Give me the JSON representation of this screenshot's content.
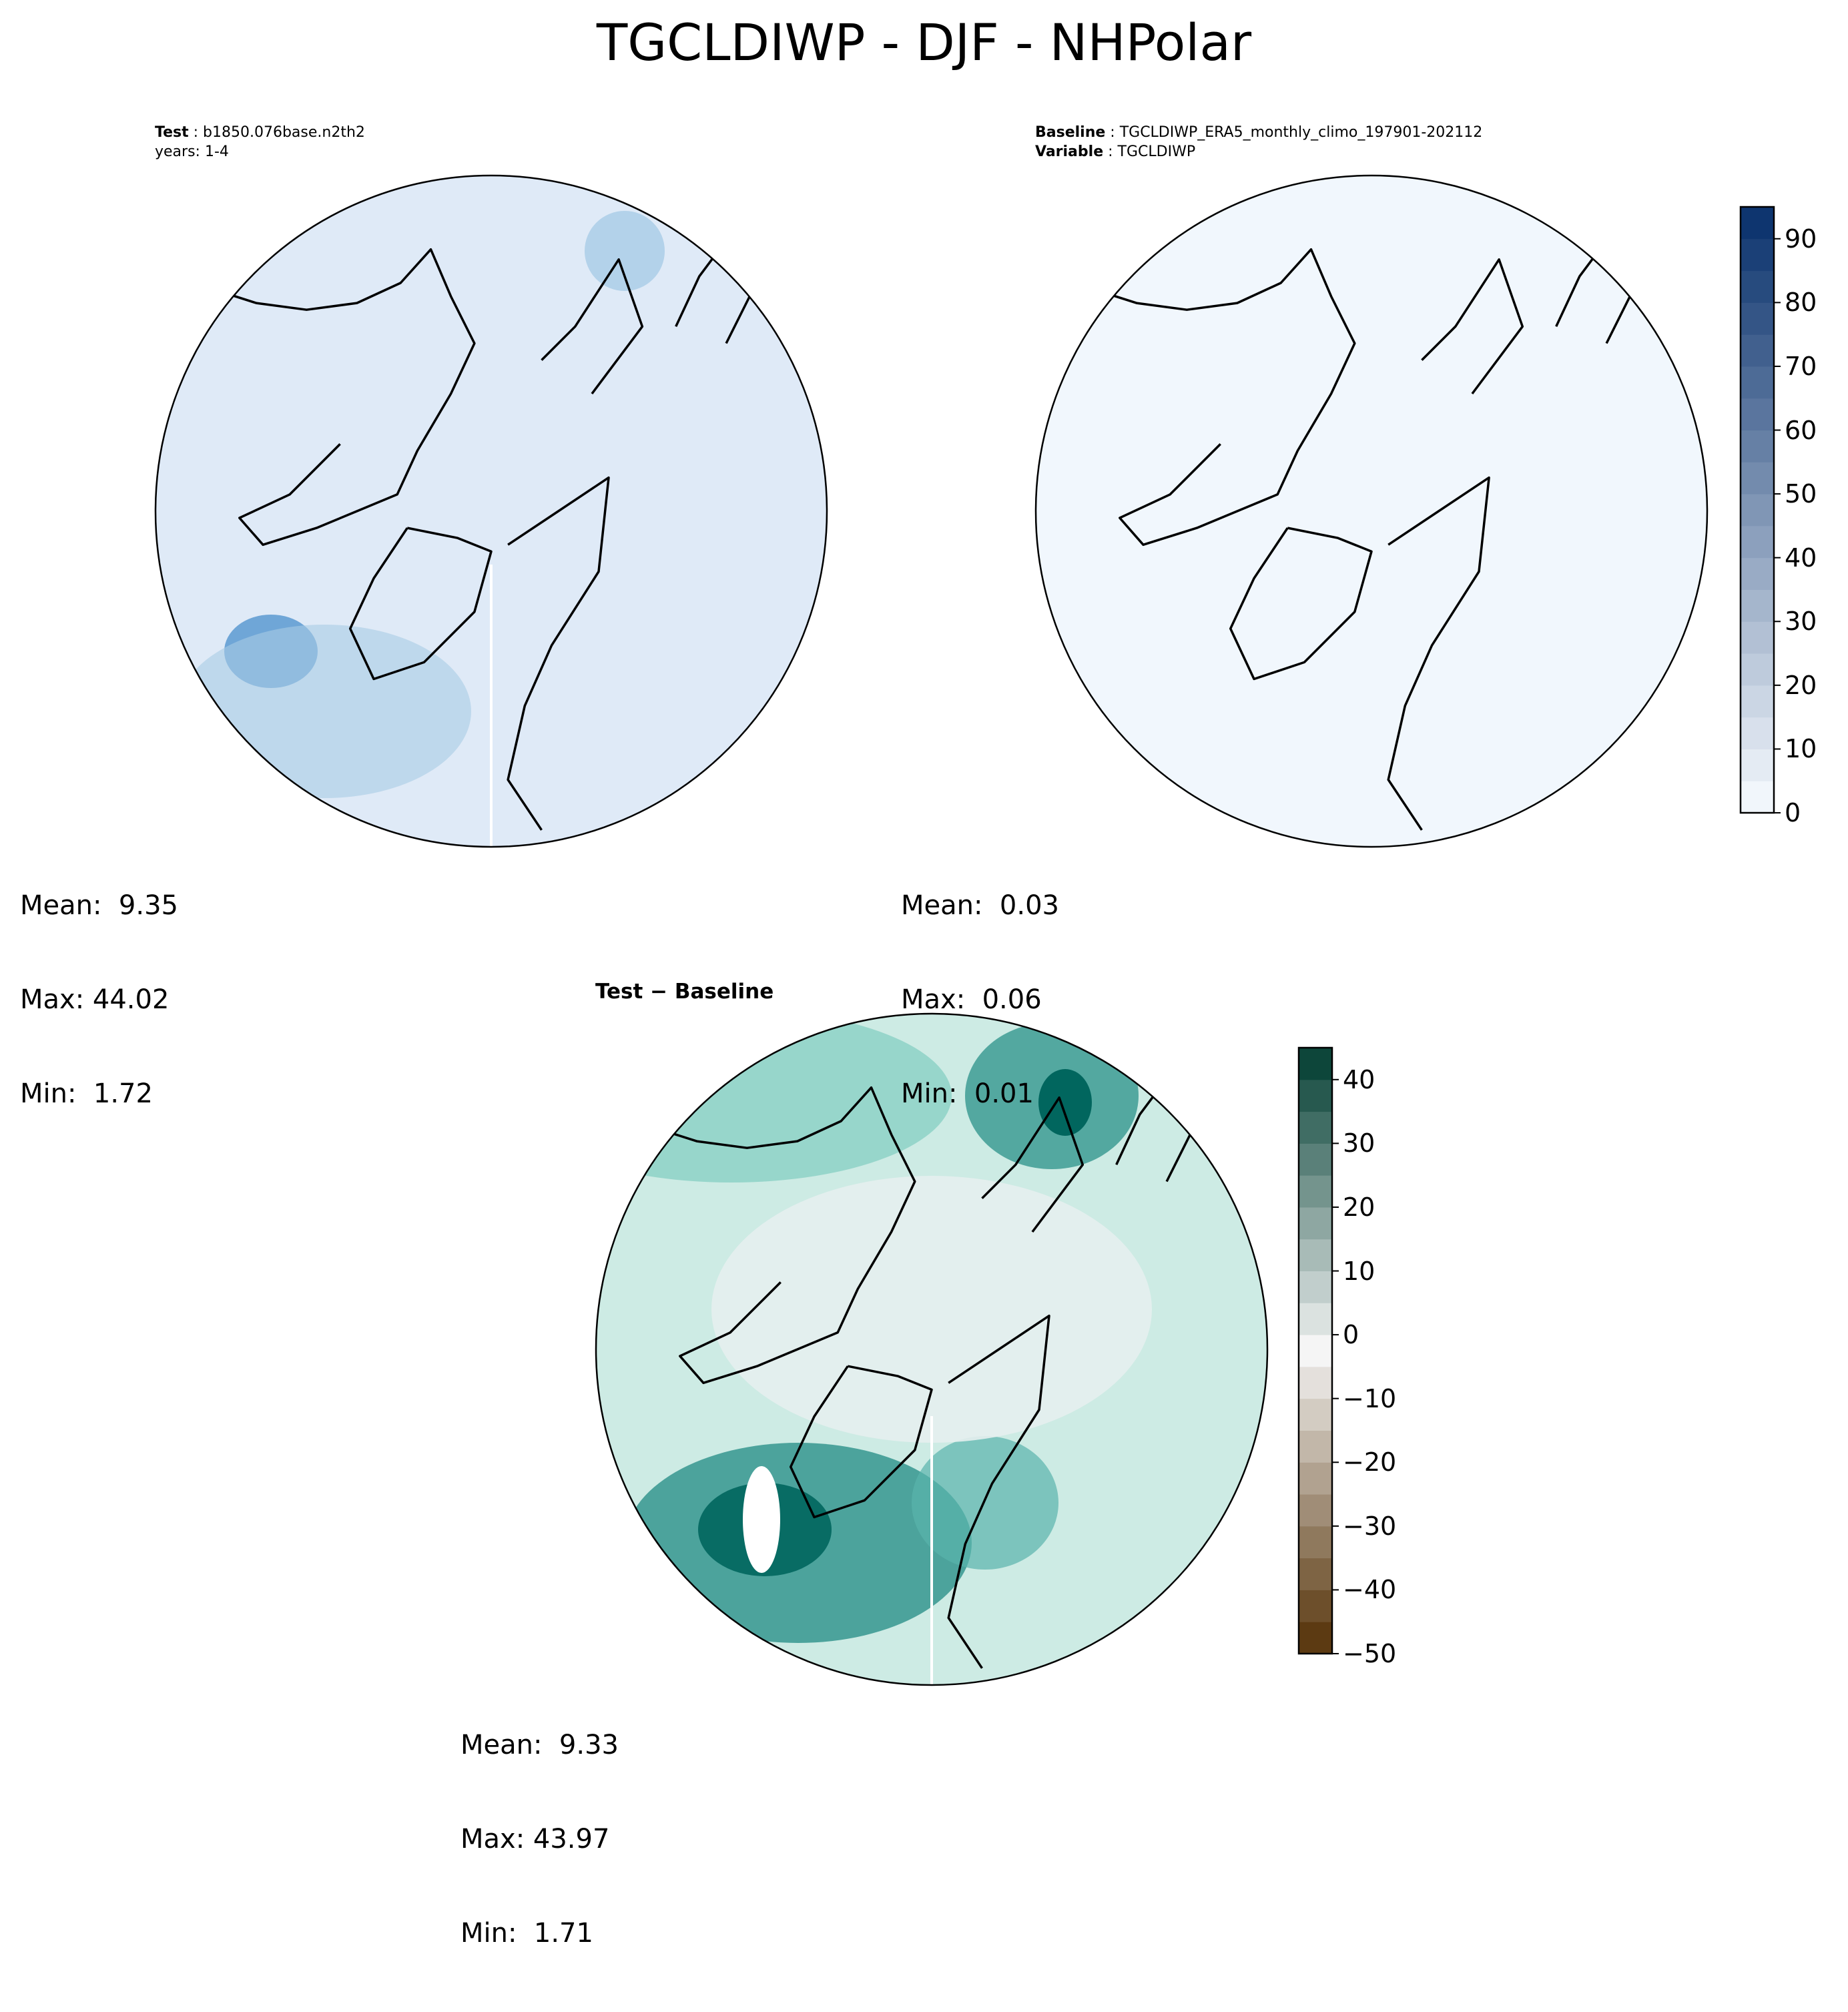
{
  "figure": {
    "title": "TGCLDIWP - DJF - NHPolar"
  },
  "panels": [
    {
      "id": "test",
      "header_lines": [
        {
          "label": "Test",
          "value": "b1850.076base.n2th2"
        },
        {
          "label": "",
          "value": "years: 1-4"
        }
      ],
      "stats": {
        "mean": "9.35",
        "max": "44.02",
        "min": "1.72"
      },
      "fill_color": "#dfeaf7"
    },
    {
      "id": "baseline",
      "header_lines": [
        {
          "label": "Baseline",
          "value": "TGCLDIWP_ERA5_monthly_climo_197901-202112"
        },
        {
          "label": "Variable",
          "value": "TGCLDIWP"
        }
      ],
      "stats": {
        "mean": "0.03",
        "max": "0.06",
        "min": "0.01"
      },
      "fill_color": "#f1f7fd"
    },
    {
      "id": "difference",
      "title": "Test − Baseline",
      "stats": {
        "mean": "9.33",
        "max": "43.97",
        "min": "1.71"
      },
      "fill_color": "#cdebe4"
    }
  ],
  "stat_labels": {
    "mean": "Mean:",
    "max": "Max:",
    "min": "Min:"
  },
  "colorbars": {
    "field": {
      "cmap": "Blues",
      "range": [
        0,
        95
      ],
      "ticks": [
        "0",
        "10",
        "20",
        "30",
        "40",
        "50",
        "60",
        "70",
        "80",
        "90"
      ],
      "levels": [
        0,
        5,
        10,
        15,
        20,
        25,
        30,
        35,
        40,
        45,
        50,
        55,
        60,
        65,
        70,
        75,
        80,
        85,
        90,
        95
      ]
    },
    "difference": {
      "cmap": "BrBG",
      "range": [
        -50,
        45
      ],
      "ticks": [
        "−50",
        "−40",
        "−30",
        "−20",
        "−10",
        "0",
        "10",
        "20",
        "30",
        "40"
      ],
      "levels": [
        -50,
        -45,
        -40,
        -35,
        -30,
        -25,
        -20,
        -15,
        -10,
        -5,
        0,
        5,
        10,
        15,
        20,
        25,
        30,
        35,
        40,
        45
      ]
    }
  },
  "colors": {
    "blues_low": "#f7fbff",
    "blues_high": "#08306b",
    "brbg_low": "#543005",
    "brbg_mid": "#f5f5f5",
    "brbg_high": "#003c30"
  }
}
